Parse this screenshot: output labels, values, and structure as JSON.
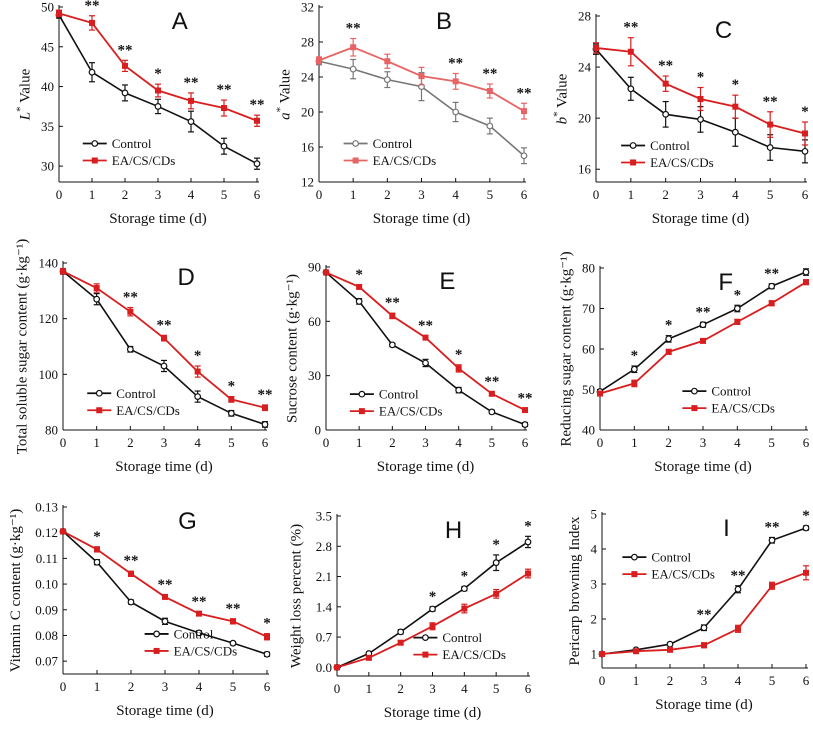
{
  "figure": {
    "colors": {
      "control": "#111111",
      "treat": "#d81e1e"
    },
    "legend_labels": [
      "Control",
      "EA/CS/CDs"
    ]
  },
  "chart_data": [
    {
      "type": "line",
      "letter": "A",
      "title": "",
      "xlabel": "Storage time (d)",
      "ylabel_italic": "L",
      "ylabel_sup": "*",
      "ylabel_rest": " Value",
      "x": [
        0,
        1,
        2,
        3,
        4,
        5,
        6
      ],
      "xlim": [
        0,
        6
      ],
      "ylim": [
        28,
        50
      ],
      "yticks": [
        30,
        35,
        40,
        45,
        50
      ],
      "yticklabels": [
        "30",
        "35",
        "40",
        "45",
        "50"
      ],
      "legend_pos": "bottom-left",
      "series": [
        {
          "name": "Control",
          "color": "#111111",
          "values": [
            49,
            41.8,
            39.2,
            37.5,
            35.6,
            32.5,
            30.3
          ],
          "errors": [
            0.4,
            1.2,
            1.0,
            0.9,
            1.3,
            1.0,
            0.7
          ],
          "marker": "open"
        },
        {
          "name": "EA/CS/CDs",
          "color": "#d81e1e",
          "values": [
            49.2,
            48,
            42.6,
            39.5,
            38.2,
            37.3,
            35.7
          ],
          "errors": [
            0.4,
            0.9,
            0.7,
            0.8,
            1.0,
            1.0,
            0.7
          ],
          "marker": "filled"
        }
      ],
      "significance": [
        "",
        "**",
        "**",
        "*",
        "**",
        "**",
        "**"
      ]
    },
    {
      "type": "line",
      "letter": "B",
      "title": "",
      "xlabel": "Storage time (d)",
      "ylabel_italic": "a",
      "ylabel_sup": "*",
      "ylabel_rest": " Value",
      "x": [
        0,
        1,
        2,
        3,
        4,
        5,
        6
      ],
      "xlim": [
        0,
        6
      ],
      "ylim": [
        12,
        32
      ],
      "yticks": [
        12,
        16,
        20,
        24,
        28,
        32
      ],
      "yticklabels": [
        "12",
        "16",
        "20",
        "24",
        "28",
        "32"
      ],
      "legend_pos": "bottom-left",
      "series": [
        {
          "name": "Control",
          "color": "#777777",
          "values": [
            25.8,
            24.9,
            23.7,
            22.9,
            20,
            18.4,
            15
          ],
          "errors": [
            0.4,
            1.1,
            0.9,
            1.6,
            1.1,
            0.9,
            0.9
          ],
          "marker": "open"
        },
        {
          "name": "EA/CS/CDs",
          "color": "#e76464",
          "values": [
            25.9,
            27.4,
            25.8,
            24.1,
            23.5,
            22.4,
            20.1
          ],
          "errors": [
            0.4,
            1.0,
            0.8,
            1.0,
            0.9,
            0.8,
            0.9
          ],
          "marker": "filled"
        }
      ],
      "significance": [
        "",
        "**",
        "",
        "",
        "**",
        "**",
        "**"
      ]
    },
    {
      "type": "line",
      "letter": "C",
      "title": "",
      "xlabel": "Storage time (d)",
      "ylabel_italic": "b",
      "ylabel_sup": "*",
      "ylabel_rest": " Value",
      "x": [
        0,
        1,
        2,
        3,
        4,
        5,
        6
      ],
      "xlim": [
        0,
        6
      ],
      "ylim": [
        15,
        28
      ],
      "yticks": [
        16,
        20,
        24,
        28
      ],
      "yticklabels": [
        "16",
        "20",
        "24",
        "28"
      ],
      "legend_pos": "bottom-left",
      "series": [
        {
          "name": "Control",
          "color": "#111111",
          "values": [
            25.4,
            22.3,
            20.3,
            19.9,
            18.9,
            17.7,
            17.4
          ],
          "errors": [
            0.4,
            0.9,
            1.0,
            1.0,
            1.1,
            1.0,
            0.9
          ],
          "marker": "open"
        },
        {
          "name": "EA/CS/CDs",
          "color": "#d81e1e",
          "values": [
            25.5,
            25.2,
            22.7,
            21.5,
            20.9,
            19.5,
            18.8
          ],
          "errors": [
            0.4,
            1.1,
            0.6,
            0.9,
            0.9,
            1.0,
            0.9
          ],
          "marker": "filled"
        }
      ],
      "significance": [
        "",
        "**",
        "**",
        "*",
        "*",
        "**",
        "*"
      ]
    },
    {
      "type": "line",
      "letter": "D",
      "title": "",
      "xlabel": "Storage time (d)",
      "ylabel": "Total soluble sugar content (g·kg⁻¹)",
      "x": [
        0,
        1,
        2,
        3,
        4,
        5,
        6
      ],
      "xlim": [
        0,
        6
      ],
      "ylim": [
        80,
        140
      ],
      "yticks": [
        80,
        100,
        120,
        140
      ],
      "yticklabels": [
        "80",
        "100",
        "120",
        "140"
      ],
      "legend_pos": "bottom-left",
      "series": [
        {
          "name": "Control",
          "color": "#111111",
          "values": [
            137,
            127,
            109,
            103,
            92,
            86,
            82
          ],
          "errors": [
            1,
            2,
            1,
            2,
            2,
            1,
            1
          ],
          "marker": "open"
        },
        {
          "name": "EA/CS/CDs",
          "color": "#d81e1e",
          "values": [
            137,
            131,
            122.5,
            113,
            101,
            91,
            88
          ],
          "errors": [
            1,
            1.5,
            1.5,
            1,
            2,
            1,
            1
          ],
          "marker": "filled"
        }
      ],
      "significance": [
        "",
        "",
        "**",
        "**",
        "*",
        "*",
        "**"
      ]
    },
    {
      "type": "line",
      "letter": "E",
      "title": "",
      "xlabel": "Storage time (d)",
      "ylabel": "Sucrose content (g·kg⁻¹)",
      "x": [
        0,
        1,
        2,
        3,
        4,
        5,
        6
      ],
      "xlim": [
        0,
        6
      ],
      "ylim": [
        0,
        90
      ],
      "yticks": [
        0,
        30,
        60,
        90
      ],
      "yticklabels": [
        "0",
        "30",
        "60",
        "90"
      ],
      "legend_pos": "bottom-left",
      "series": [
        {
          "name": "Control",
          "color": "#111111",
          "values": [
            87,
            71,
            47,
            37,
            22,
            10,
            3
          ],
          "errors": [
            1,
            1.5,
            1,
            2,
            1.5,
            1,
            1
          ],
          "marker": "open"
        },
        {
          "name": "EA/CS/CDs",
          "color": "#d81e1e",
          "values": [
            87,
            79,
            63,
            51,
            34,
            20,
            11
          ],
          "errors": [
            1,
            1,
            1.5,
            1,
            2,
            1,
            1
          ],
          "marker": "filled"
        }
      ],
      "significance": [
        "",
        "*",
        "**",
        "**",
        "*",
        "**",
        "**"
      ]
    },
    {
      "type": "line",
      "letter": "F",
      "title": "",
      "xlabel": "Storage time (d)",
      "ylabel": "Reducing sugar content (g·kg⁻¹)",
      "x": [
        0,
        1,
        2,
        3,
        4,
        5,
        6
      ],
      "xlim": [
        0,
        6
      ],
      "ylim": [
        40,
        80
      ],
      "yticks": [
        40,
        50,
        60,
        70,
        80
      ],
      "yticklabels": [
        "40",
        "50",
        "60",
        "70",
        "80"
      ],
      "legend_pos": "bottom-right",
      "series": [
        {
          "name": "Control",
          "color": "#111111",
          "values": [
            49.5,
            55,
            62.5,
            66,
            70,
            75.5,
            79
          ],
          "errors": [
            0.5,
            0.8,
            0.8,
            0.6,
            0.8,
            0.6,
            0.8
          ],
          "marker": "open"
        },
        {
          "name": "EA/CS/CDs",
          "color": "#d81e1e",
          "values": [
            49,
            51.5,
            59.3,
            62,
            66.7,
            71.3,
            76.5
          ],
          "errors": [
            0.5,
            0.8,
            0.6,
            0.5,
            0.6,
            0.6,
            0.6
          ],
          "marker": "filled"
        }
      ],
      "significance": [
        "",
        "*",
        "*",
        "**",
        "*",
        "**",
        ""
      ]
    },
    {
      "type": "line",
      "letter": "G",
      "title": "",
      "xlabel": "Storage time (d)",
      "ylabel": "Vitamin C content (g·kg⁻¹)",
      "x": [
        0,
        1,
        2,
        3,
        4,
        5,
        6
      ],
      "xlim": [
        0,
        6
      ],
      "ylim": [
        0.065,
        0.13
      ],
      "yticks": [
        0.07,
        0.08,
        0.09,
        0.1,
        0.11,
        0.12,
        0.13
      ],
      "yticklabels": [
        "0.07",
        "0.08",
        "0.09",
        "0.10",
        "0.11",
        "0.12",
        "0.13"
      ],
      "legend_pos": "bottom-right",
      "series": [
        {
          "name": "Control",
          "color": "#111111",
          "values": [
            0.1205,
            0.1085,
            0.093,
            0.0855,
            0.081,
            0.077,
            0.0727
          ],
          "errors": [
            0.0005,
            0.001,
            0.0008,
            0.0012,
            0.0008,
            0.0006,
            0.0008
          ],
          "marker": "open"
        },
        {
          "name": "EA/CS/CDs",
          "color": "#d81e1e",
          "values": [
            0.1205,
            0.1135,
            0.104,
            0.095,
            0.0885,
            0.0855,
            0.0795
          ],
          "errors": [
            0.0005,
            0.001,
            0.001,
            0.0007,
            0.0007,
            0.001,
            0.0012
          ],
          "marker": "filled"
        }
      ],
      "significance": [
        "",
        "*",
        "**",
        "**",
        "**",
        "**",
        "*"
      ]
    },
    {
      "type": "line",
      "letter": "H",
      "title": "",
      "xlabel": "Storage time (d)",
      "ylabel": "Weight loss percent (%)",
      "x": [
        0,
        1,
        2,
        3,
        4,
        5,
        6
      ],
      "xlim": [
        0,
        6
      ],
      "ylim": [
        -0.2,
        3.5
      ],
      "yticks": [
        0.0,
        0.7,
        1.4,
        2.1,
        2.8,
        3.5
      ],
      "yticklabels": [
        "0.0",
        "0.7",
        "1.4",
        "2.1",
        "2.8",
        "3.5"
      ],
      "legend_pos": "bottom-right",
      "series": [
        {
          "name": "Control",
          "color": "#111111",
          "values": [
            0,
            0.32,
            0.82,
            1.35,
            1.82,
            2.42,
            2.9
          ],
          "errors": [
            0,
            0.03,
            0.05,
            0.05,
            0.05,
            0.18,
            0.13
          ],
          "marker": "open"
        },
        {
          "name": "EA/CS/CDs",
          "color": "#d81e1e",
          "values": [
            0,
            0.22,
            0.57,
            0.95,
            1.36,
            1.7,
            2.17
          ],
          "errors": [
            0,
            0.03,
            0.05,
            0.08,
            0.1,
            0.1,
            0.1
          ],
          "marker": "filled"
        }
      ],
      "significance": [
        "",
        "",
        "",
        "*",
        "*",
        "*",
        "*"
      ]
    },
    {
      "type": "line",
      "letter": "I",
      "title": "",
      "xlabel": "Storage time (d)",
      "ylabel": "Pericarp browning Index",
      "x": [
        0,
        1,
        2,
        3,
        4,
        5,
        6
      ],
      "xlim": [
        0,
        6
      ],
      "ylim": [
        0.6,
        5
      ],
      "yticks": [
        1,
        2,
        3,
        4,
        5
      ],
      "yticklabels": [
        "1",
        "2",
        "3",
        "4",
        "5"
      ],
      "legend_pos": "top-left",
      "series": [
        {
          "name": "Control",
          "color": "#111111",
          "values": [
            1,
            1.12,
            1.28,
            1.75,
            2.85,
            4.25,
            4.6
          ],
          "errors": [
            0.02,
            0.03,
            0.04,
            0.08,
            0.1,
            0.08,
            0.06
          ],
          "marker": "open"
        },
        {
          "name": "EA/CS/CDs",
          "color": "#d81e1e",
          "values": [
            1,
            1.08,
            1.12,
            1.25,
            1.72,
            2.95,
            3.32
          ],
          "errors": [
            0.02,
            0.03,
            0.03,
            0.07,
            0.1,
            0.1,
            0.2
          ],
          "marker": "filled"
        }
      ],
      "significance": [
        "",
        "",
        "",
        "**",
        "**",
        "**",
        "*"
      ]
    }
  ]
}
